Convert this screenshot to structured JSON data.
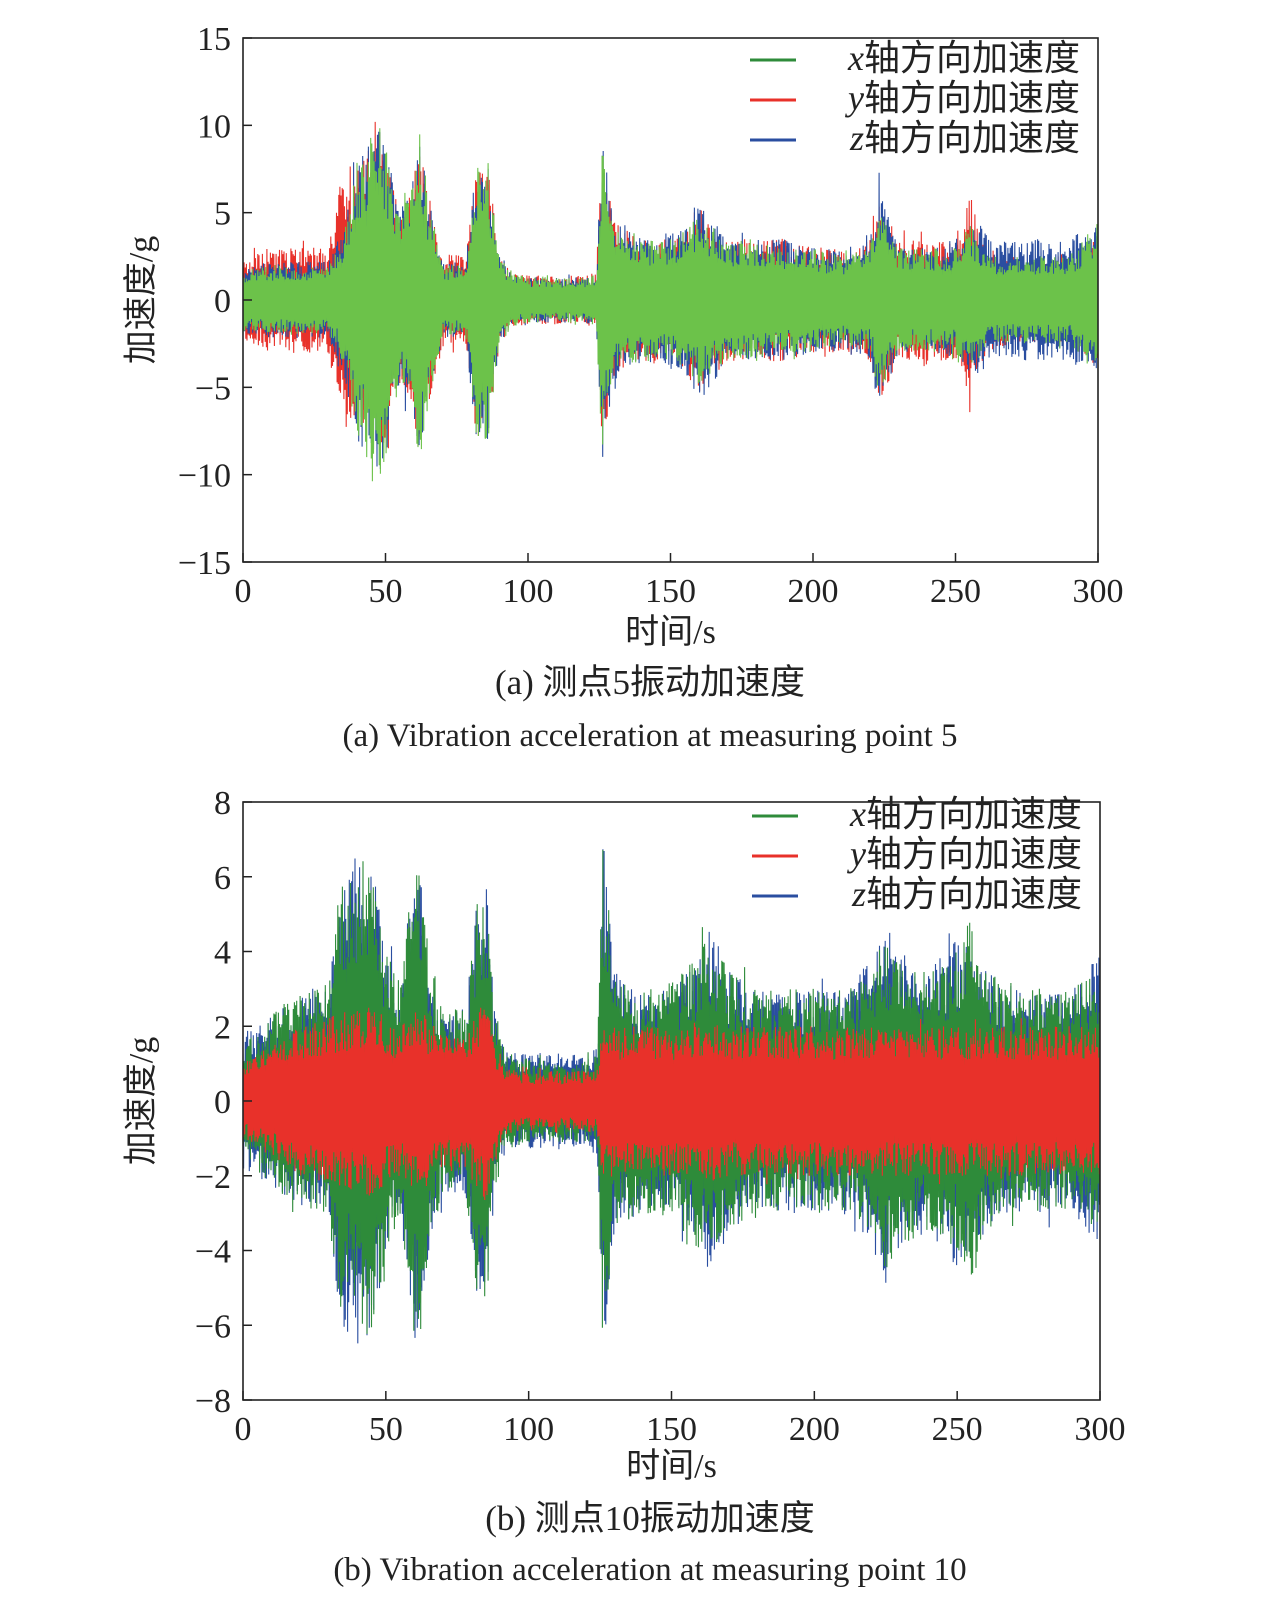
{
  "colors": {
    "x_series": "#2e8b3a",
    "x_series_a": "#6cc24a",
    "y_series": "#e8312a",
    "z_series": "#2a4ea0",
    "axis": "#222222"
  },
  "chart_data": [
    {
      "type": "line",
      "id": "a",
      "xlabel": "时间/s",
      "ylabel": "加速度/g",
      "xlim": [
        0,
        300
      ],
      "ylim": [
        -15,
        15
      ],
      "xticks": [
        0,
        50,
        100,
        150,
        200,
        250,
        300
      ],
      "yticks": [
        -15,
        -10,
        -5,
        0,
        5,
        10,
        15
      ],
      "ytick_labels": [
        "−15",
        "−10",
        "−5",
        "0",
        "5",
        "10",
        "15"
      ],
      "grid": false,
      "legend_position": "top-right",
      "legend": [
        {
          "italic": "x",
          "text": "轴方向加速度",
          "color": "#2e8b3a"
        },
        {
          "italic": "y",
          "text": "轴方向加速度",
          "color": "#e8312a"
        },
        {
          "italic": "z",
          "text": "轴方向加速度",
          "color": "#2a4ea0"
        }
      ],
      "caption_cn": "(a) 测点5振动加速度",
      "caption_en": "(a) Vibration acceleration at measuring point 5",
      "draw_order": [
        "y",
        "z",
        "x"
      ],
      "series": [
        {
          "name": "x轴方向加速度",
          "key": "x",
          "color": "#6cc24a",
          "envelope_t": [
            0,
            10,
            20,
            30,
            35,
            40,
            45,
            48,
            52,
            55,
            60,
            62,
            65,
            70,
            78,
            82,
            86,
            90,
            95,
            100,
            110,
            120,
            124,
            126,
            130,
            140,
            150,
            155,
            160,
            170,
            180,
            190,
            200,
            210,
            220,
            223,
            226,
            230,
            240,
            250,
            255,
            258,
            262,
            270,
            280,
            290,
            300
          ],
          "envelope_amp": [
            1.8,
            2.0,
            2.0,
            2.0,
            3.5,
            8.0,
            9.5,
            10.5,
            7.5,
            5.0,
            7.0,
            9.5,
            6.0,
            2.0,
            2.0,
            8.0,
            8.0,
            2.5,
            1.5,
            1.3,
            1.3,
            1.3,
            1.5,
            9.0,
            4.0,
            3.5,
            3.5,
            4.0,
            5.0,
            3.5,
            3.5,
            3.0,
            3.0,
            2.5,
            3.0,
            5.5,
            4.5,
            3.0,
            3.0,
            3.0,
            4.5,
            3.5,
            2.5,
            2.5,
            2.5,
            2.5,
            4.5
          ]
        },
        {
          "name": "y轴方向加速度",
          "key": "y",
          "color": "#e8312a",
          "envelope_t": [
            0,
            10,
            20,
            30,
            35,
            40,
            45,
            48,
            52,
            55,
            60,
            62,
            65,
            70,
            78,
            82,
            86,
            90,
            95,
            100,
            110,
            120,
            124,
            126,
            130,
            140,
            150,
            155,
            160,
            170,
            180,
            190,
            200,
            210,
            220,
            223,
            226,
            230,
            240,
            250,
            255,
            258,
            262,
            270,
            280,
            290,
            300
          ],
          "envelope_amp": [
            2.5,
            3.0,
            3.2,
            3.0,
            7.5,
            8.0,
            9.5,
            10.0,
            7.5,
            5.0,
            7.0,
            9.5,
            6.0,
            2.8,
            2.5,
            8.0,
            8.0,
            2.5,
            1.5,
            1.4,
            1.4,
            1.4,
            1.6,
            9.0,
            4.5,
            3.5,
            3.5,
            4.0,
            5.5,
            3.5,
            3.5,
            3.5,
            3.0,
            3.0,
            3.5,
            5.5,
            5.0,
            3.5,
            3.5,
            3.5,
            6.5,
            4.0,
            3.0,
            2.5,
            2.5,
            2.5,
            4.0
          ]
        },
        {
          "name": "z轴方向加速度",
          "key": "z",
          "color": "#2a4ea0",
          "envelope_t": [
            0,
            10,
            20,
            30,
            35,
            40,
            45,
            48,
            52,
            55,
            60,
            62,
            65,
            70,
            78,
            82,
            86,
            90,
            95,
            100,
            110,
            120,
            124,
            126,
            130,
            140,
            150,
            155,
            160,
            170,
            180,
            190,
            200,
            210,
            220,
            223,
            226,
            230,
            240,
            250,
            255,
            258,
            262,
            270,
            280,
            290,
            300
          ],
          "envelope_amp": [
            2.0,
            2.2,
            2.2,
            2.2,
            4.0,
            8.0,
            9.5,
            10.2,
            7.5,
            5.0,
            7.0,
            10.0,
            6.0,
            2.2,
            2.2,
            8.0,
            8.0,
            2.5,
            1.5,
            1.3,
            1.3,
            1.3,
            1.5,
            9.5,
            5.0,
            3.5,
            4.0,
            4.0,
            6.0,
            3.5,
            3.5,
            3.5,
            3.0,
            3.0,
            3.5,
            6.5,
            5.0,
            3.0,
            3.0,
            3.5,
            4.5,
            4.5,
            3.5,
            3.5,
            3.5,
            3.5,
            4.5
          ]
        }
      ]
    },
    {
      "type": "line",
      "id": "b",
      "xlabel": "时间/s",
      "ylabel": "加速度/g",
      "xlim": [
        0,
        300
      ],
      "ylim": [
        -8,
        8
      ],
      "xticks": [
        0,
        50,
        100,
        150,
        200,
        250,
        300
      ],
      "yticks": [
        -8,
        -6,
        -4,
        -2,
        0,
        2,
        4,
        6,
        8
      ],
      "ytick_labels": [
        "−8",
        "−6",
        "−4",
        "−2",
        "0",
        "2",
        "4",
        "6",
        "8"
      ],
      "grid": false,
      "legend_position": "top-right",
      "legend": [
        {
          "italic": "x",
          "text": "轴方向加速度",
          "color": "#2e8b3a"
        },
        {
          "italic": "y",
          "text": "轴方向加速度",
          "color": "#e8312a"
        },
        {
          "italic": "z",
          "text": "轴方向加速度",
          "color": "#2a4ea0"
        }
      ],
      "caption_cn": "(b) 测点10振动加速度",
      "caption_en": "(b) Vibration acceleration at measuring point 10",
      "draw_order": [
        "z",
        "x",
        "y"
      ],
      "series": [
        {
          "name": "x轴方向加速度",
          "key": "x",
          "color": "#2e8b3a",
          "envelope_t": [
            0,
            10,
            20,
            30,
            34,
            38,
            42,
            46,
            50,
            55,
            60,
            62,
            65,
            70,
            78,
            82,
            85,
            88,
            92,
            100,
            110,
            120,
            124,
            126,
            130,
            140,
            150,
            160,
            163,
            170,
            180,
            190,
            200,
            210,
            220,
            225,
            230,
            240,
            250,
            255,
            260,
            270,
            280,
            290,
            300
          ],
          "envelope_amp": [
            1.5,
            2.3,
            3.0,
            3.2,
            6.3,
            5.0,
            6.5,
            6.3,
            4.0,
            3.2,
            6.3,
            6.5,
            4.0,
            2.5,
            2.5,
            5.5,
            5.8,
            2.5,
            1.3,
            1.1,
            1.1,
            1.1,
            1.3,
            6.8,
            3.5,
            3.0,
            3.2,
            4.0,
            4.5,
            3.5,
            3.0,
            3.0,
            3.0,
            3.0,
            3.5,
            4.5,
            4.0,
            3.5,
            4.0,
            5.0,
            3.5,
            3.0,
            3.0,
            3.0,
            3.5
          ]
        },
        {
          "name": "y轴方向加速度",
          "key": "y",
          "color": "#e8312a",
          "envelope_t": [
            0,
            10,
            20,
            30,
            34,
            38,
            42,
            46,
            50,
            55,
            60,
            62,
            65,
            70,
            78,
            82,
            85,
            88,
            92,
            100,
            110,
            120,
            124,
            126,
            130,
            140,
            150,
            160,
            163,
            170,
            180,
            190,
            200,
            210,
            220,
            225,
            230,
            240,
            250,
            255,
            260,
            270,
            280,
            290,
            300
          ],
          "envelope_amp": [
            1.0,
            1.5,
            2.0,
            2.2,
            2.4,
            2.4,
            2.6,
            2.6,
            2.2,
            2.0,
            2.4,
            2.5,
            2.2,
            1.8,
            1.8,
            2.5,
            2.8,
            1.5,
            0.9,
            0.8,
            0.8,
            0.8,
            0.9,
            2.2,
            2.0,
            2.0,
            2.0,
            2.0,
            2.2,
            2.0,
            2.0,
            2.0,
            2.0,
            2.0,
            2.0,
            2.0,
            2.0,
            2.0,
            2.0,
            2.0,
            2.0,
            2.0,
            2.0,
            2.0,
            2.0
          ]
        },
        {
          "name": "z轴方向加速度",
          "key": "z",
          "color": "#2a4ea0",
          "envelope_t": [
            0,
            10,
            20,
            30,
            34,
            38,
            42,
            46,
            50,
            55,
            60,
            62,
            65,
            70,
            78,
            82,
            85,
            88,
            92,
            100,
            110,
            120,
            124,
            126,
            130,
            140,
            150,
            160,
            163,
            170,
            180,
            190,
            200,
            210,
            220,
            225,
            230,
            240,
            250,
            255,
            260,
            270,
            280,
            290,
            300
          ],
          "envelope_amp": [
            1.8,
            2.3,
            2.8,
            3.0,
            6.0,
            6.7,
            6.5,
            6.3,
            4.0,
            3.0,
            6.5,
            6.3,
            4.0,
            2.5,
            2.5,
            5.5,
            6.0,
            2.5,
            1.3,
            1.3,
            1.3,
            1.3,
            1.5,
            7.2,
            3.5,
            3.0,
            3.0,
            3.8,
            4.8,
            3.5,
            3.0,
            3.0,
            3.0,
            3.0,
            3.8,
            5.0,
            4.0,
            3.5,
            4.5,
            4.0,
            3.5,
            3.0,
            3.0,
            3.0,
            4.0
          ]
        }
      ]
    }
  ]
}
